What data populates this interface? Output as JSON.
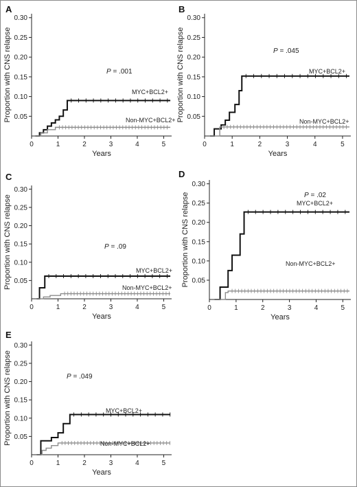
{
  "figure": {
    "panels": [
      "A",
      "B",
      "C",
      "D",
      "E"
    ]
  },
  "colors": {
    "myc_bcl2": "#111111",
    "non_myc_bcl2": "#8c8c8c",
    "axis": "#222222"
  },
  "chart_data": [
    {
      "panel": "A",
      "type": "line",
      "step": true,
      "xlabel": "Years",
      "ylabel": "Proportion with CNS relapse",
      "xlim": [
        0,
        5.3
      ],
      "ylim": [
        0,
        0.31
      ],
      "xticks": [
        "0",
        "1",
        "2",
        "3",
        "4",
        "5"
      ],
      "yticks": [
        "0.05",
        "0.10",
        "0.15",
        "0.20",
        "0.25",
        "0.30"
      ],
      "pvalue": {
        "label": "P",
        "text": " = .001"
      },
      "series": [
        {
          "name": "MYC+BCL2+",
          "x": [
            0.15,
            0.3,
            0.45,
            0.6,
            0.75,
            0.9,
            1.05,
            1.2,
            1.35,
            5.25
          ],
          "y": [
            0,
            0.008,
            0.016,
            0.025,
            0.033,
            0.041,
            0.05,
            0.066,
            0.09,
            0.09
          ]
        },
        {
          "name": "Non-MYC+BCL2+",
          "x": [
            0.15,
            0.35,
            0.6,
            0.9,
            5.25
          ],
          "y": [
            0,
            0.008,
            0.016,
            0.022,
            0.022
          ]
        }
      ]
    },
    {
      "panel": "B",
      "type": "line",
      "step": true,
      "xlabel": "Years",
      "ylabel": "Proportion with CNS relapse",
      "xlim": [
        0,
        5.3
      ],
      "ylim": [
        0,
        0.31
      ],
      "xticks": [
        "0",
        "1",
        "2",
        "3",
        "4",
        "5"
      ],
      "yticks": [
        "0.05",
        "0.10",
        "0.15",
        "0.20",
        "0.25",
        "0.30"
      ],
      "pvalue": {
        "label": "P",
        "text": " = .045"
      },
      "series": [
        {
          "name": "MYC+BCL2+",
          "x": [
            0.2,
            0.35,
            0.6,
            0.75,
            0.9,
            1.1,
            1.25,
            1.35,
            5.25
          ],
          "y": [
            0,
            0.018,
            0.028,
            0.04,
            0.06,
            0.08,
            0.115,
            0.152,
            0.152
          ]
        },
        {
          "name": "Non-MYC+BCL2+",
          "x": [
            0.2,
            0.55,
            5.25
          ],
          "y": [
            0,
            0.023,
            0.023
          ]
        }
      ]
    },
    {
      "panel": "C",
      "type": "line",
      "step": true,
      "xlabel": "Years",
      "ylabel": "Proportion with CNS relapse",
      "xlim": [
        0,
        5.3
      ],
      "ylim": [
        0,
        0.31
      ],
      "xticks": [
        "0",
        "1",
        "2",
        "3",
        "4",
        "5"
      ],
      "yticks": [
        "0.05",
        "0.10",
        "0.15",
        "0.20",
        "0.25",
        "0.30"
      ],
      "pvalue": {
        "label": "P",
        "text": " = .09"
      },
      "series": [
        {
          "name": "MYC+BCL2+",
          "x": [
            0.2,
            0.3,
            0.5,
            5.25
          ],
          "y": [
            0,
            0.03,
            0.062,
            0.062
          ]
        },
        {
          "name": "Non-MYC+BCL2+",
          "x": [
            0.2,
            0.45,
            0.7,
            1.1,
            5.25
          ],
          "y": [
            0,
            0.005,
            0.009,
            0.014,
            0.014
          ]
        }
      ]
    },
    {
      "panel": "D",
      "type": "line",
      "step": true,
      "xlabel": "Years",
      "ylabel": "Proportion with CNS relapse",
      "xlim": [
        0,
        5.3
      ],
      "ylim": [
        0,
        0.31
      ],
      "xticks": [
        "0",
        "1",
        "2",
        "3",
        "4",
        "5"
      ],
      "yticks": [
        "0.05",
        "0.10",
        "0.15",
        "0.20",
        "0.25",
        "0.30"
      ],
      "pvalue": {
        "label": "P",
        "text": " = .02"
      },
      "series": [
        {
          "name": "MYC+BCL2+",
          "x": [
            0.2,
            0.4,
            0.7,
            0.85,
            1.15,
            1.3,
            5.25
          ],
          "y": [
            0,
            0.032,
            0.075,
            0.115,
            0.17,
            0.227,
            0.227
          ]
        },
        {
          "name": "Non-MYC+BCL2+",
          "x": [
            0.2,
            0.6,
            0.7,
            5.25
          ],
          "y": [
            0,
            0.018,
            0.022,
            0.022
          ]
        }
      ]
    },
    {
      "panel": "E",
      "type": "line",
      "step": true,
      "xlabel": "Years",
      "ylabel": "Proportion with CNS relapse",
      "xlim": [
        0,
        5.3
      ],
      "ylim": [
        0,
        0.31
      ],
      "xticks": [
        "0",
        "1",
        "2",
        "3",
        "4",
        "5"
      ],
      "yticks": [
        "0.05",
        "0.10",
        "0.15",
        "0.20",
        "0.25",
        "0.30"
      ],
      "pvalue": {
        "label": "P",
        "text": " = .049"
      },
      "series": [
        {
          "name": "MYC+BCL2+",
          "x": [
            0.2,
            0.35,
            0.75,
            1.0,
            1.2,
            1.45,
            5.25
          ],
          "y": [
            0,
            0.038,
            0.047,
            0.06,
            0.085,
            0.11,
            0.11
          ]
        },
        {
          "name": "Non-MYC+BCL2+",
          "x": [
            0.2,
            0.4,
            0.55,
            0.75,
            1.0,
            5.25
          ],
          "y": [
            0,
            0.012,
            0.018,
            0.025,
            0.032,
            0.032
          ]
        }
      ]
    }
  ]
}
